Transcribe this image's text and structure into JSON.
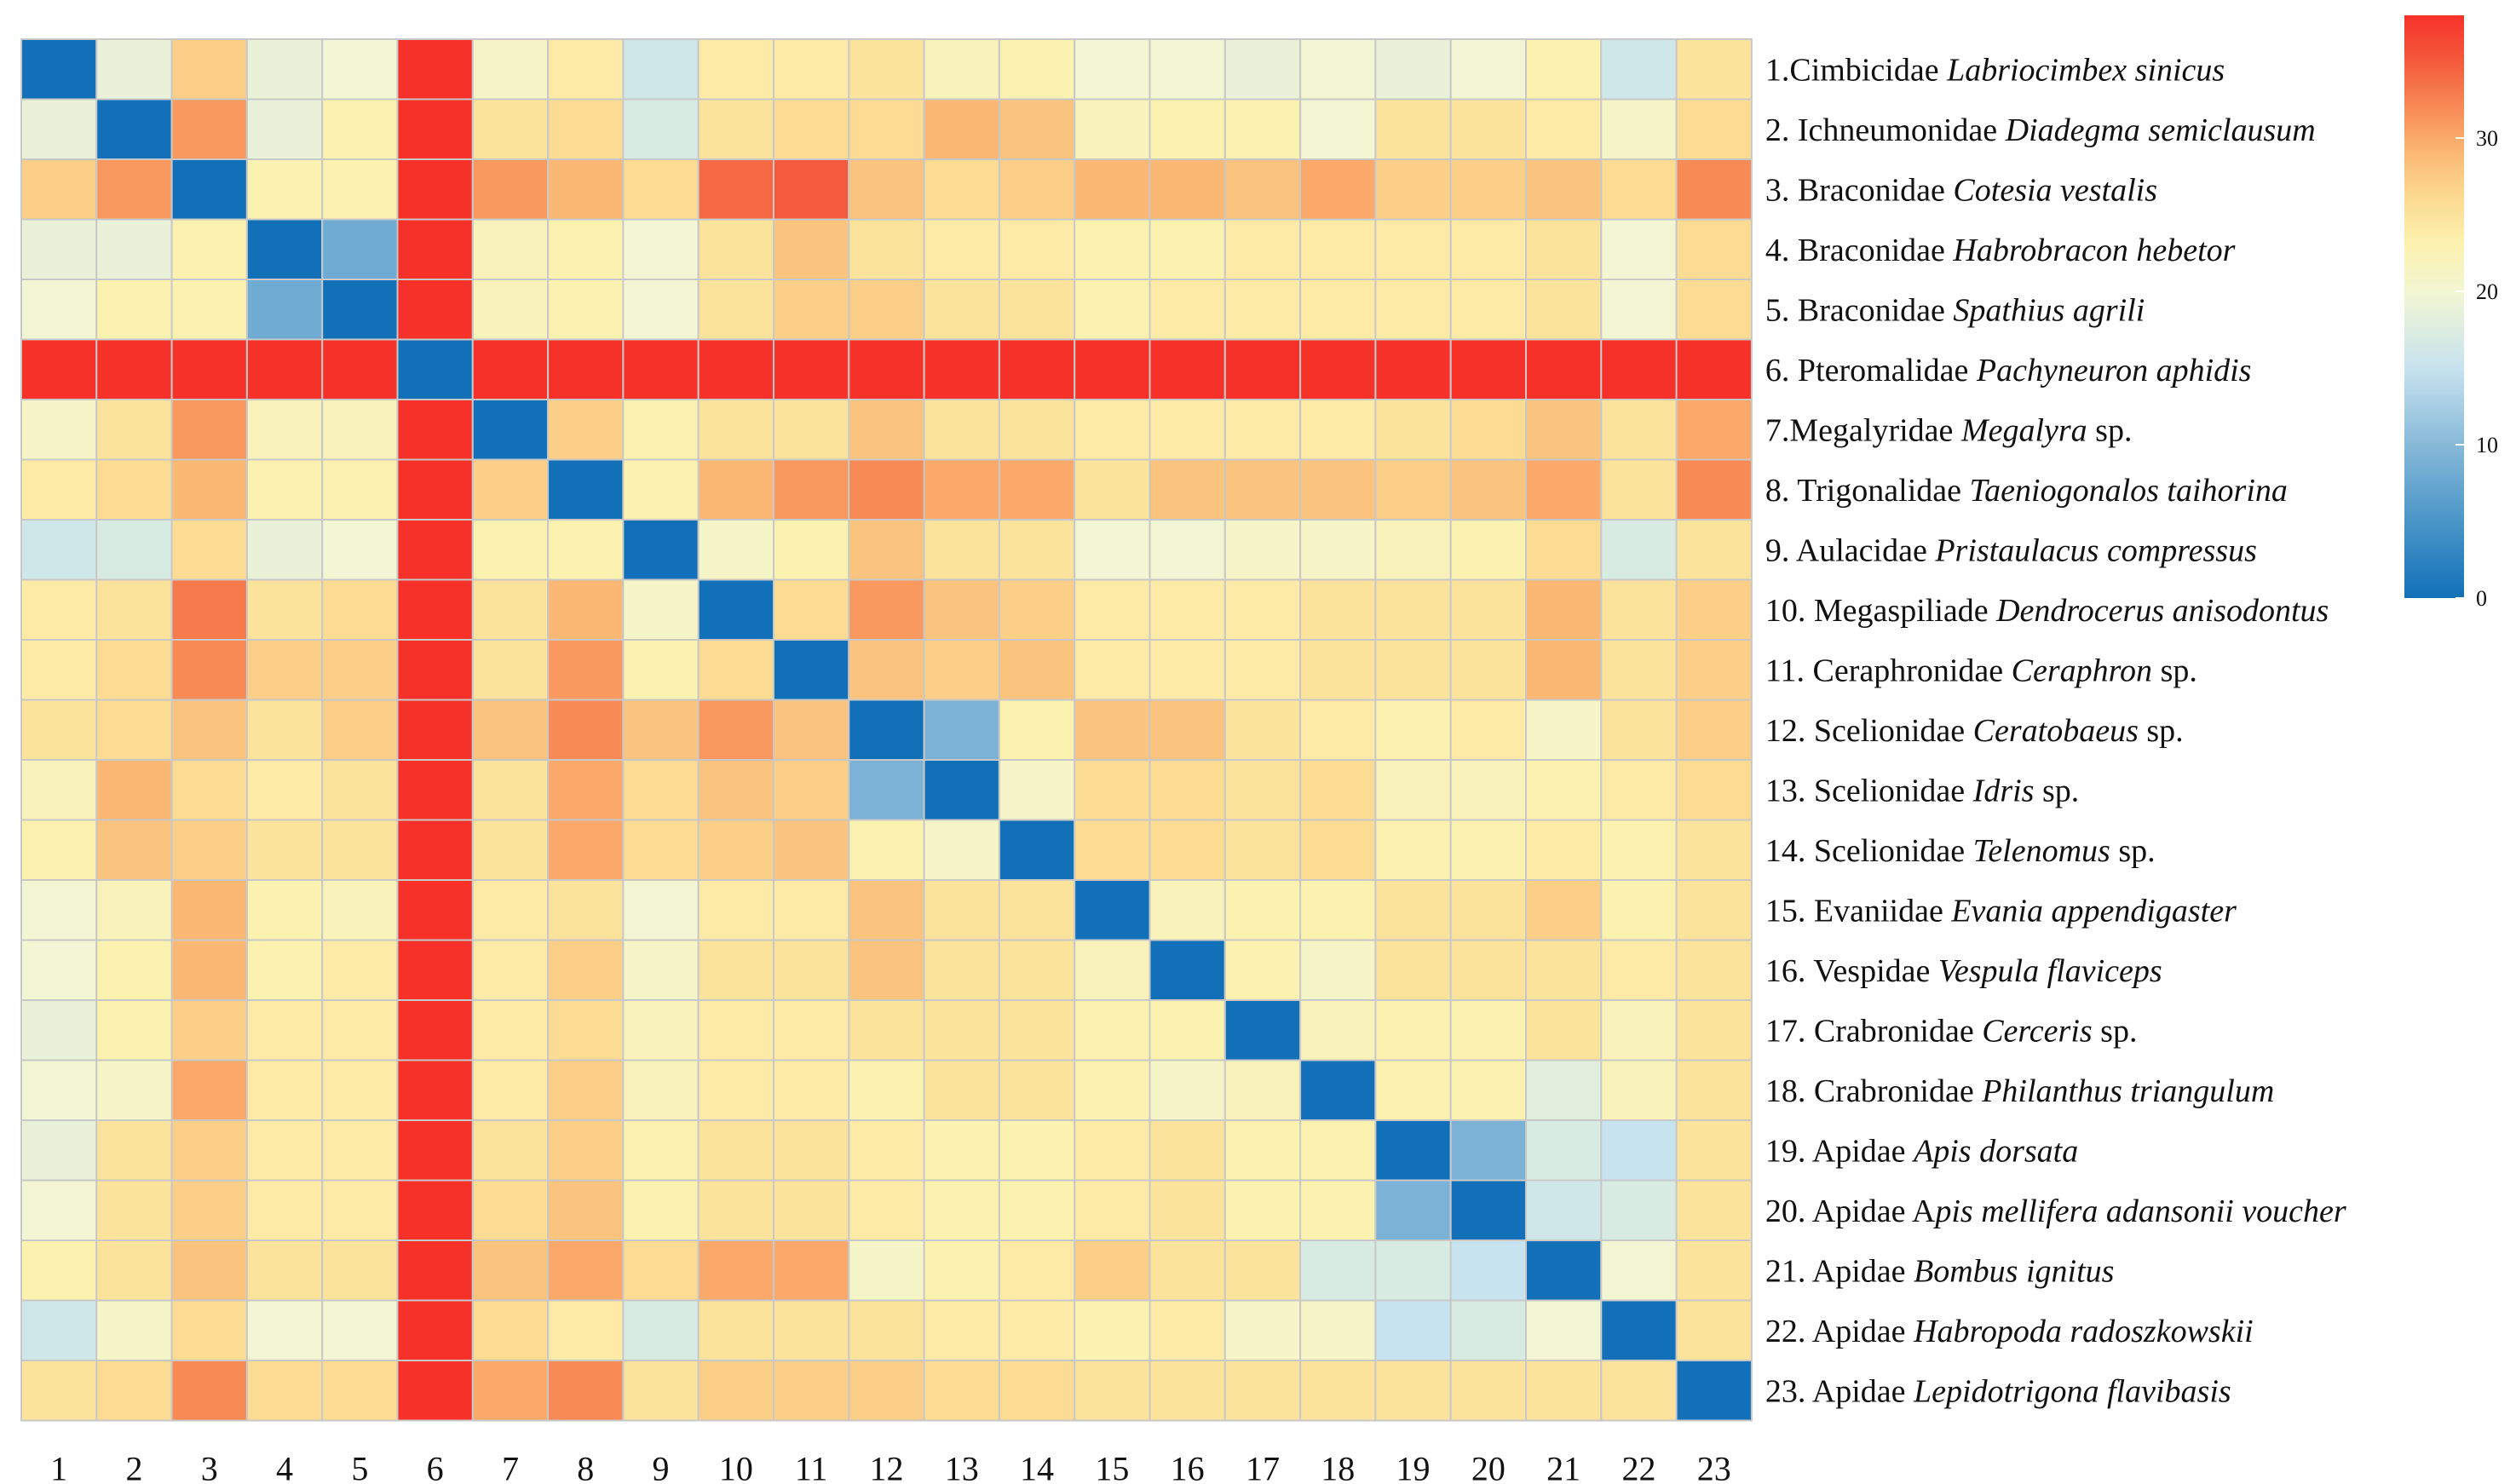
{
  "chart_data": {
    "type": "heatmap",
    "title": "",
    "xlabel": "",
    "ylabel": "",
    "x_ticks": [
      "1",
      "2",
      "3",
      "4",
      "5",
      "6",
      "7",
      "8",
      "9",
      "10",
      "11",
      "12",
      "13",
      "14",
      "15",
      "16",
      "17",
      "18",
      "19",
      "20",
      "21",
      "22",
      "23"
    ],
    "row_labels": [
      {
        "prefix": "1.Cimbicidae ",
        "italic": "Labriocimbex sinicus",
        "suffix": ""
      },
      {
        "prefix": "2. Ichneumonidae ",
        "italic": "Diadegma semiclausum",
        "suffix": ""
      },
      {
        "prefix": "3. Braconidae ",
        "italic": "Cotesia vestalis",
        "suffix": ""
      },
      {
        "prefix": "4. Braconidae ",
        "italic": "Habrobracon hebetor",
        "suffix": ""
      },
      {
        "prefix": "5. Braconidae ",
        "italic": "Spathius agrili",
        "suffix": ""
      },
      {
        "prefix": "6. Pteromalidae ",
        "italic": "Pachyneuron aphidis",
        "suffix": ""
      },
      {
        "prefix": "7.Megalyridae ",
        "italic": "Megalyra",
        "suffix": " sp."
      },
      {
        "prefix": "8. Trigonalidae ",
        "italic": "Taeniogonalos taihorina",
        "suffix": ""
      },
      {
        "prefix": "9. Aulacidae ",
        "italic": "Pristaulacus compressus",
        "suffix": ""
      },
      {
        "prefix": "10. Megaspiliade ",
        "italic": "Dendrocerus anisodontus",
        "suffix": ""
      },
      {
        "prefix": "11. Ceraphronidae ",
        "italic": "Ceraphron",
        "suffix": " sp."
      },
      {
        "prefix": "12. Scelionidae ",
        "italic": "Ceratobaeus",
        "suffix": " sp."
      },
      {
        "prefix": "13. Scelionidae ",
        "italic": "Idris",
        "suffix": " sp."
      },
      {
        "prefix": "14. Scelionidae ",
        "italic": "Telenomus",
        "suffix": " sp."
      },
      {
        "prefix": "15. Evaniidae ",
        "italic": "Evania appendigaster",
        "suffix": ""
      },
      {
        "prefix": "16. Vespidae ",
        "italic": "Vespula flaviceps",
        "suffix": ""
      },
      {
        "prefix": "17. Crabronidae ",
        "italic": "Cerceris",
        "suffix": " sp."
      },
      {
        "prefix": "18. Crabronidae ",
        "italic": "Philanthus triangulum",
        "suffix": ""
      },
      {
        "prefix": "19. Apidae ",
        "italic": "Apis dorsata",
        "suffix": ""
      },
      {
        "prefix": "20. Apidae A",
        "italic": "pis mellifera adansonii voucher",
        "suffix": ""
      },
      {
        "prefix": "21. Apidae ",
        "italic": "Bombus ignitus",
        "suffix": ""
      },
      {
        "prefix": "22. Apidae ",
        "italic": "Habropoda radoszkowskii",
        "suffix": ""
      },
      {
        "prefix": "23. Apidae ",
        "italic": "Lepidotrigona flavibasis",
        "suffix": ""
      }
    ],
    "values": [
      [
        0,
        19,
        27,
        19,
        20,
        38,
        21,
        24,
        16,
        24,
        24,
        25,
        22,
        23,
        20,
        20,
        19,
        20,
        19,
        20,
        23,
        16,
        25
      ],
      [
        19,
        0,
        31,
        19,
        23,
        38,
        25,
        26,
        17,
        25,
        26,
        26,
        29,
        28,
        22,
        23,
        23,
        20,
        25,
        25,
        24,
        21,
        26
      ],
      [
        27,
        31,
        0,
        23,
        23,
        38,
        31,
        29,
        26,
        34,
        35,
        28,
        26,
        27,
        29,
        29,
        28,
        30,
        27,
        27,
        28,
        26,
        32
      ],
      [
        19,
        19,
        23,
        0,
        8,
        38,
        22,
        23,
        20,
        25,
        28,
        25,
        24,
        24,
        23,
        23,
        24,
        24,
        24,
        24,
        25,
        20,
        26
      ],
      [
        20,
        23,
        23,
        8,
        0,
        38,
        22,
        23,
        20,
        25,
        27,
        27,
        25,
        25,
        23,
        24,
        24,
        24,
        24,
        24,
        25,
        20,
        26
      ],
      [
        38,
        38,
        38,
        38,
        38,
        0,
        38,
        38,
        38,
        38,
        38,
        38,
        38,
        38,
        38,
        38,
        38,
        38,
        38,
        38,
        38,
        38,
        38
      ],
      [
        21,
        25,
        31,
        22,
        22,
        38,
        0,
        27,
        23,
        25,
        25,
        28,
        25,
        25,
        24,
        24,
        24,
        24,
        25,
        26,
        28,
        25,
        30
      ],
      [
        24,
        26,
        29,
        23,
        23,
        38,
        27,
        0,
        23,
        29,
        31,
        32,
        30,
        30,
        25,
        28,
        28,
        28,
        27,
        28,
        30,
        25,
        32
      ],
      [
        16,
        17,
        26,
        19,
        20,
        38,
        23,
        23,
        0,
        21,
        23,
        28,
        25,
        25,
        20,
        20,
        21,
        21,
        22,
        23,
        26,
        17,
        25
      ],
      [
        24,
        25,
        33,
        25,
        26,
        38,
        25,
        29,
        21,
        0,
        26,
        31,
        28,
        27,
        24,
        24,
        24,
        25,
        25,
        25,
        29,
        25,
        27
      ],
      [
        24,
        26,
        32,
        27,
        27,
        38,
        25,
        31,
        23,
        26,
        0,
        28,
        27,
        28,
        24,
        24,
        24,
        25,
        25,
        25,
        29,
        25,
        27
      ],
      [
        25,
        26,
        28,
        25,
        27,
        38,
        28,
        32,
        28,
        31,
        28,
        0,
        9,
        23,
        28,
        28,
        25,
        24,
        23,
        24,
        21,
        25,
        27
      ],
      [
        22,
        29,
        26,
        24,
        25,
        38,
        25,
        30,
        26,
        28,
        27,
        9,
        0,
        21,
        26,
        26,
        25,
        26,
        22,
        22,
        23,
        24,
        26
      ],
      [
        23,
        28,
        27,
        25,
        25,
        38,
        25,
        30,
        26,
        27,
        28,
        23,
        21,
        0,
        26,
        26,
        25,
        26,
        23,
        23,
        24,
        23,
        25
      ],
      [
        20,
        22,
        29,
        23,
        22,
        38,
        24,
        25,
        20,
        24,
        24,
        28,
        25,
        25,
        0,
        22,
        23,
        23,
        25,
        25,
        27,
        23,
        25
      ],
      [
        20,
        23,
        29,
        23,
        24,
        38,
        24,
        27,
        21,
        25,
        25,
        28,
        25,
        25,
        22,
        0,
        23,
        21,
        25,
        25,
        25,
        24,
        25
      ],
      [
        19,
        23,
        27,
        24,
        24,
        38,
        24,
        26,
        22,
        24,
        24,
        25,
        25,
        25,
        23,
        23,
        0,
        22,
        23,
        23,
        25,
        22,
        25
      ],
      [
        20,
        21,
        30,
        24,
        24,
        38,
        24,
        27,
        22,
        24,
        24,
        23,
        25,
        25,
        23,
        21,
        22,
        0,
        23,
        23,
        18,
        22,
        25
      ],
      [
        19,
        25,
        27,
        24,
        24,
        38,
        25,
        27,
        23,
        25,
        25,
        24,
        23,
        23,
        24,
        25,
        23,
        23,
        0,
        9,
        17,
        15,
        25
      ],
      [
        20,
        25,
        27,
        24,
        24,
        38,
        26,
        28,
        23,
        25,
        25,
        24,
        23,
        23,
        24,
        25,
        23,
        23,
        9,
        0,
        16,
        17,
        25
      ],
      [
        23,
        25,
        28,
        25,
        25,
        38,
        28,
        30,
        26,
        30,
        30,
        21,
        23,
        24,
        27,
        25,
        25,
        17,
        17,
        15,
        0,
        20,
        25
      ],
      [
        16,
        21,
        26,
        20,
        20,
        38,
        26,
        24,
        17,
        25,
        25,
        25,
        24,
        24,
        23,
        24,
        21,
        21,
        15,
        17,
        20,
        0,
        25
      ],
      [
        25,
        26,
        32,
        26,
        26,
        38,
        30,
        32,
        25,
        27,
        27,
        27,
        26,
        26,
        25,
        25,
        25,
        25,
        25,
        25,
        25,
        25,
        0
      ]
    ],
    "colorbar": {
      "min": 0,
      "max": 38,
      "ticks": [
        0,
        10,
        20,
        30
      ],
      "tick_labels": [
        "0",
        "10",
        "20",
        "30"
      ]
    },
    "colorscale": [
      [
        0,
        "#1270b8"
      ],
      [
        5,
        "#4a96c8"
      ],
      [
        10,
        "#87b9d8"
      ],
      [
        15,
        "#c7e3ef"
      ],
      [
        20,
        "#f2f6d2"
      ],
      [
        23,
        "#fcf2b0"
      ],
      [
        26,
        "#fcdb92"
      ],
      [
        29,
        "#fbb874"
      ],
      [
        32,
        "#f88a56"
      ],
      [
        35,
        "#f45a3b"
      ],
      [
        38,
        "#f6312a"
      ]
    ]
  }
}
